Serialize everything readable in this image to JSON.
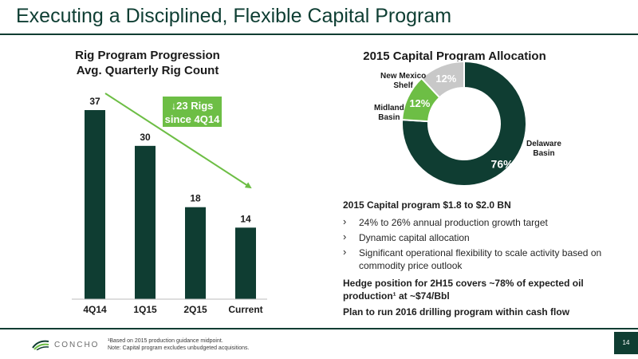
{
  "slide": {
    "title": "Executing a Disciplined, Flexible Capital Program",
    "page_number": "14"
  },
  "bar_section": {
    "title_line1": "Rig Program Progression",
    "title_line2": "Avg. Quarterly Rig Count",
    "badge_line1": "↓23 Rigs",
    "badge_line2": "since 4Q14"
  },
  "pie_section": {
    "title": "2015 Capital Program Allocation"
  },
  "content": {
    "headline": "2015 Capital program $1.8 to $2.0 BN",
    "bullets": [
      "24% to 26% annual production growth target",
      "Dynamic capital allocation",
      "Significant operational flexibility to scale activity based on commodity price outlook"
    ],
    "hedge": "Hedge position for 2H15 covers ~78% of expected oil production¹ at ~$74/Bbl",
    "plan": "Plan to run 2016 drilling program within cash flow"
  },
  "footer": {
    "logo_text": "CONCHO",
    "note1": "¹Based on 2015 production guidance midpoint.",
    "note2": "Note: Capital program excludes unbudgeted acquisitions."
  },
  "colors": {
    "dark_green": "#0f3d32",
    "light_green": "#6dbe45",
    "gray": "#c8c8c8",
    "title_green": "#0e3e33"
  },
  "chart_data": [
    {
      "type": "bar",
      "title": "Rig Program Progression Avg. Quarterly Rig Count",
      "categories": [
        "4Q14",
        "1Q15",
        "2Q15",
        "Current"
      ],
      "values": [
        37,
        30,
        18,
        14
      ],
      "ylim": [
        0,
        37
      ],
      "annotation": "↓23 Rigs since 4Q14",
      "data_labels": true,
      "color": "#0f3d32",
      "trend_arrow_color": "#6dbe45"
    },
    {
      "type": "pie",
      "donut": true,
      "title": "2015 Capital Program Allocation",
      "slices": [
        {
          "label": "Delaware Basin",
          "value": 76,
          "display": "76%",
          "color": "#0f3d32"
        },
        {
          "label": "Midland Basin",
          "value": 12,
          "display": "12%",
          "color": "#6dbe45"
        },
        {
          "label": "New Mexico Shelf",
          "value": 12,
          "display": "12%",
          "color": "#c8c8c8"
        }
      ]
    }
  ]
}
